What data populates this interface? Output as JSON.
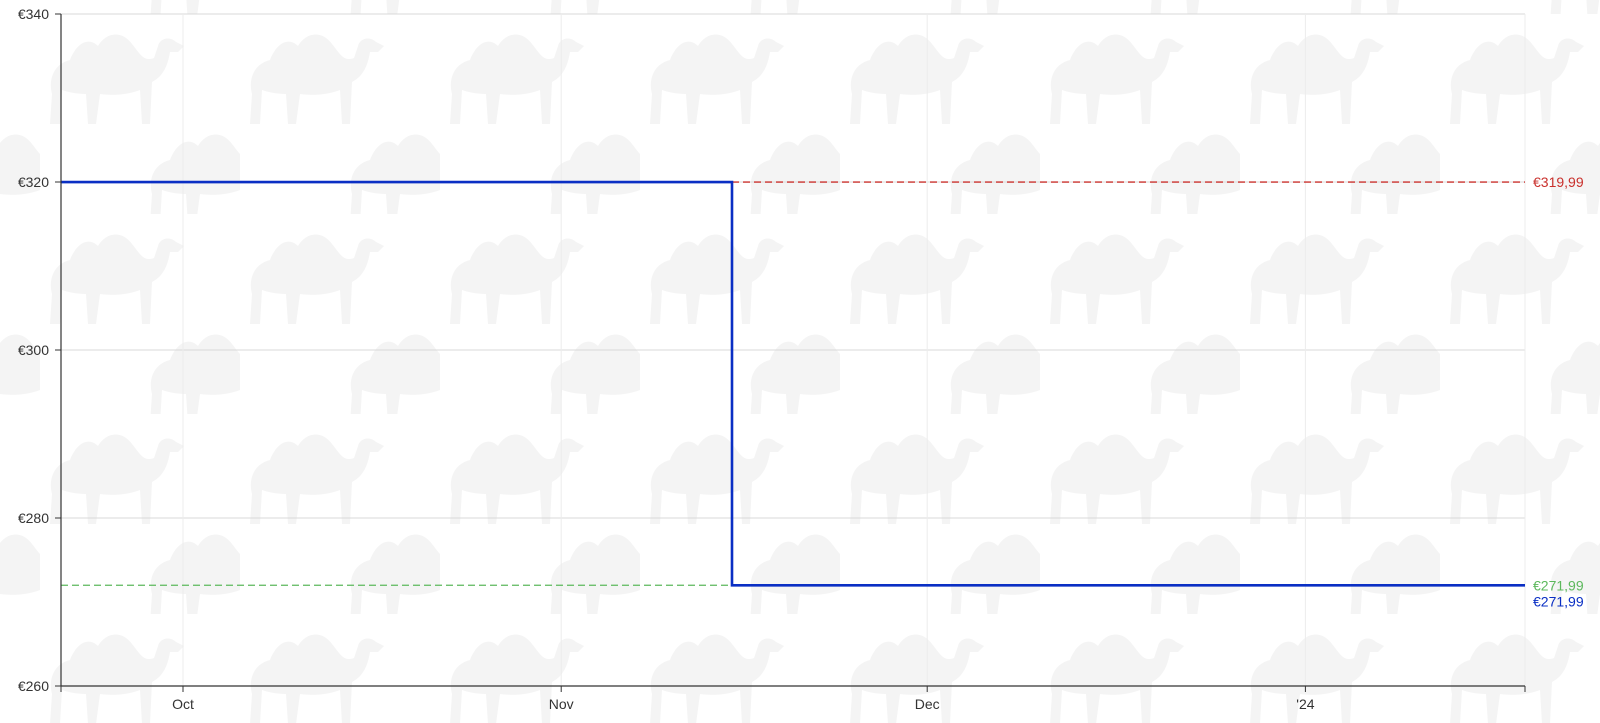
{
  "chart_data": {
    "type": "line",
    "subtype": "step",
    "x_axis": {
      "type": "date",
      "range": [
        "2023-09-21",
        "2024-01-19"
      ],
      "ticks": [
        {
          "value": "2023-10-01",
          "label": "Oct"
        },
        {
          "value": "2023-11-01",
          "label": "Nov"
        },
        {
          "value": "2023-12-01",
          "label": "Dec"
        },
        {
          "value": "2024-01-01",
          "label": "'24"
        }
      ]
    },
    "y_axis": {
      "range": [
        260,
        340
      ],
      "ticks": [
        {
          "value": 260,
          "label": "€260"
        },
        {
          "value": 280,
          "label": "€280"
        },
        {
          "value": 300,
          "label": "€300"
        },
        {
          "value": 320,
          "label": "€320"
        },
        {
          "value": 340,
          "label": "€340"
        }
      ]
    },
    "grid": true,
    "series": [
      {
        "color": "#0a2fc4",
        "points": [
          {
            "x": "2023-09-21",
            "y": 319.99
          },
          {
            "x": "2023-11-15",
            "y": 319.99
          },
          {
            "x": "2023-11-15",
            "y": 271.99
          },
          {
            "x": "2024-01-19",
            "y": 271.99
          }
        ],
        "end_label": "€271,99"
      }
    ],
    "reference_lines": [
      {
        "kind": "highest",
        "value": 319.99,
        "label": "€319,99",
        "color": "#c9302c",
        "from": "2023-11-15",
        "to": "2024-01-19"
      },
      {
        "kind": "lowest",
        "value": 271.99,
        "label": "€271,99",
        "color": "#5cb85c",
        "from": "2023-09-21",
        "to": "2023-11-15"
      }
    ],
    "background": {
      "watermark_icon": "camel-icon",
      "color": "#f4f4f4"
    }
  }
}
